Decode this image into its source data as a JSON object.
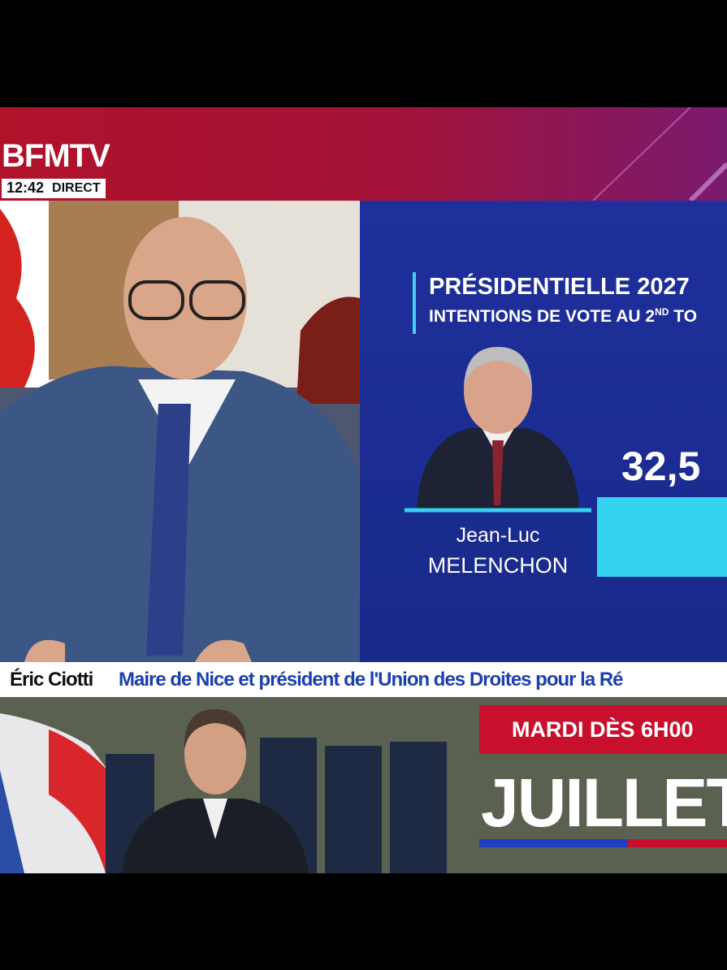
{
  "header": {
    "logo": "BFMTV",
    "time": "12:42",
    "live": "DIRECT"
  },
  "panel": {
    "title": "PRÉSIDENTIELLE 2027",
    "subtitle_pre": "INTENTIONS DE VOTE AU 2",
    "subtitle_sup": "ND",
    "subtitle_post": " TO",
    "candidate_first": "Jean-Luc",
    "candidate_last": "MELENCHON",
    "score": "32,5"
  },
  "lower_third": {
    "name": "Éric Ciotti",
    "role": "Maire de Nice et président de l'Union des Droites pour la Ré"
  },
  "promo": {
    "when": "MARDI DÈS 6H00",
    "title": "JUILLET"
  }
}
